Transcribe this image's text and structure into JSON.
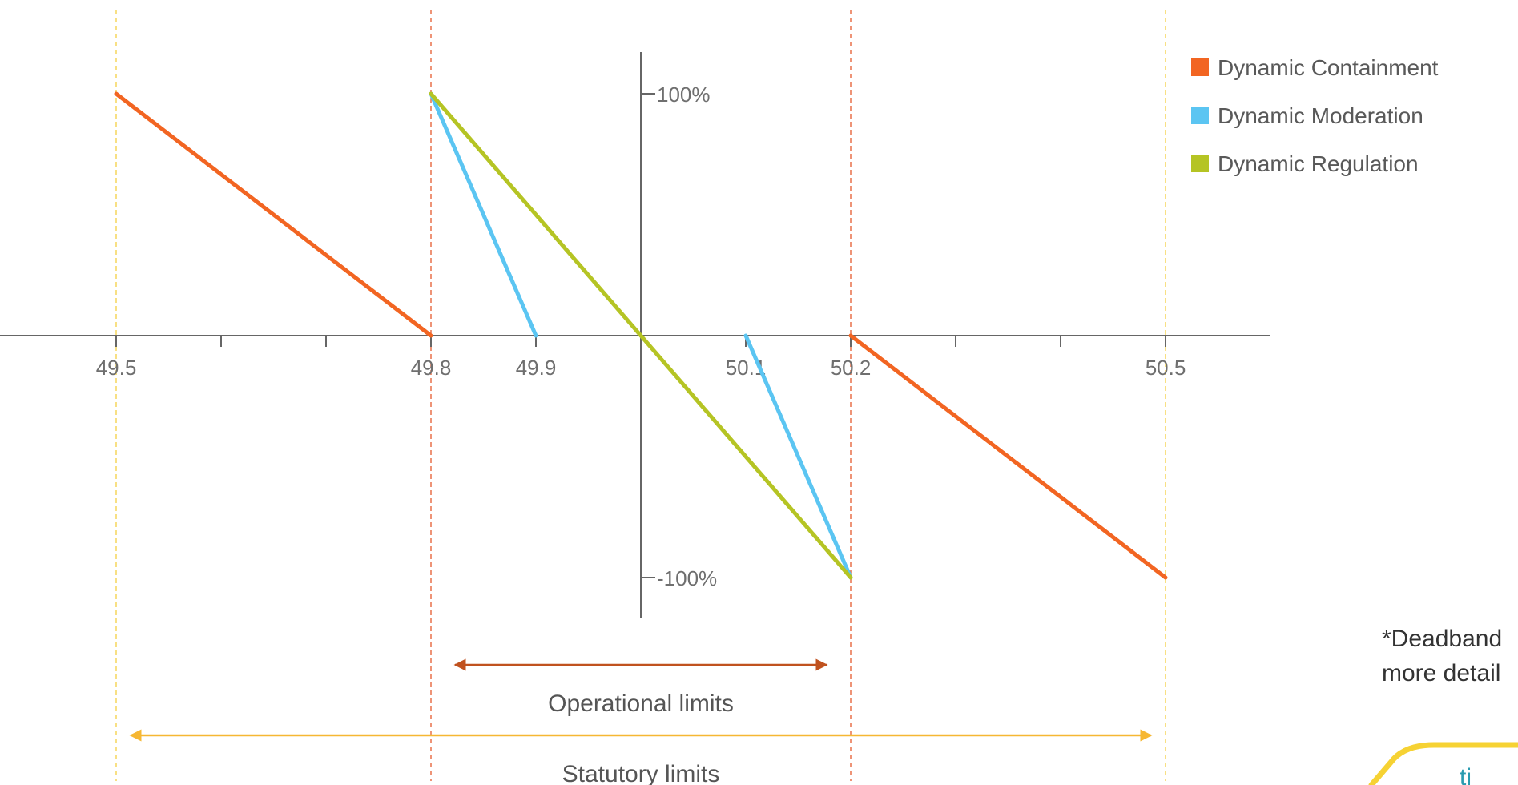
{
  "chart_data": {
    "type": "line",
    "x_tick_labels": [
      "49.5",
      "49.8",
      "49.9",
      "50.1",
      "50.2",
      "50.5"
    ],
    "x_ticks": [
      49.5,
      49.6,
      49.7,
      49.8,
      49.9,
      50.0,
      50.1,
      50.2,
      50.3,
      50.4,
      50.5
    ],
    "xlim": [
      49.37,
      50.6
    ],
    "ylim": [
      -100,
      100
    ],
    "y_tick_labels": {
      "top": "100%",
      "bottom": "-100%"
    },
    "legend_position": "top-right",
    "grid": false,
    "series": [
      {
        "name": "Dynamic Containment",
        "color": "#f26522",
        "segments": [
          [
            [
              49.5,
              100
            ],
            [
              49.8,
              0
            ]
          ],
          [
            [
              50.2,
              0
            ],
            [
              50.5,
              -100
            ]
          ]
        ]
      },
      {
        "name": "Dynamic Moderation",
        "color": "#5bc5f2",
        "segments": [
          [
            [
              49.8,
              100
            ],
            [
              49.9,
              0
            ]
          ],
          [
            [
              50.1,
              0
            ],
            [
              50.2,
              -100
            ]
          ]
        ]
      },
      {
        "name": "Dynamic Regulation",
        "color": "#b5c424",
        "segments": [
          [
            [
              49.8,
              100
            ],
            [
              50.2,
              -100
            ]
          ]
        ]
      }
    ],
    "reference_lines": [
      {
        "x": 49.5,
        "color": "#f6d55c"
      },
      {
        "x": 49.8,
        "color": "#e8704a"
      },
      {
        "x": 50.2,
        "color": "#e8704a"
      },
      {
        "x": 50.5,
        "color": "#f6d55c"
      }
    ],
    "ranges": [
      {
        "label": "Operational limits",
        "from": 49.8,
        "to": 50.2,
        "color": "#c0521f"
      },
      {
        "label": "Statutory limits",
        "from": 49.5,
        "to": 50.5,
        "color": "#f6b733"
      }
    ]
  },
  "note": {
    "line1": "*Deadband",
    "line2": "more detail"
  }
}
